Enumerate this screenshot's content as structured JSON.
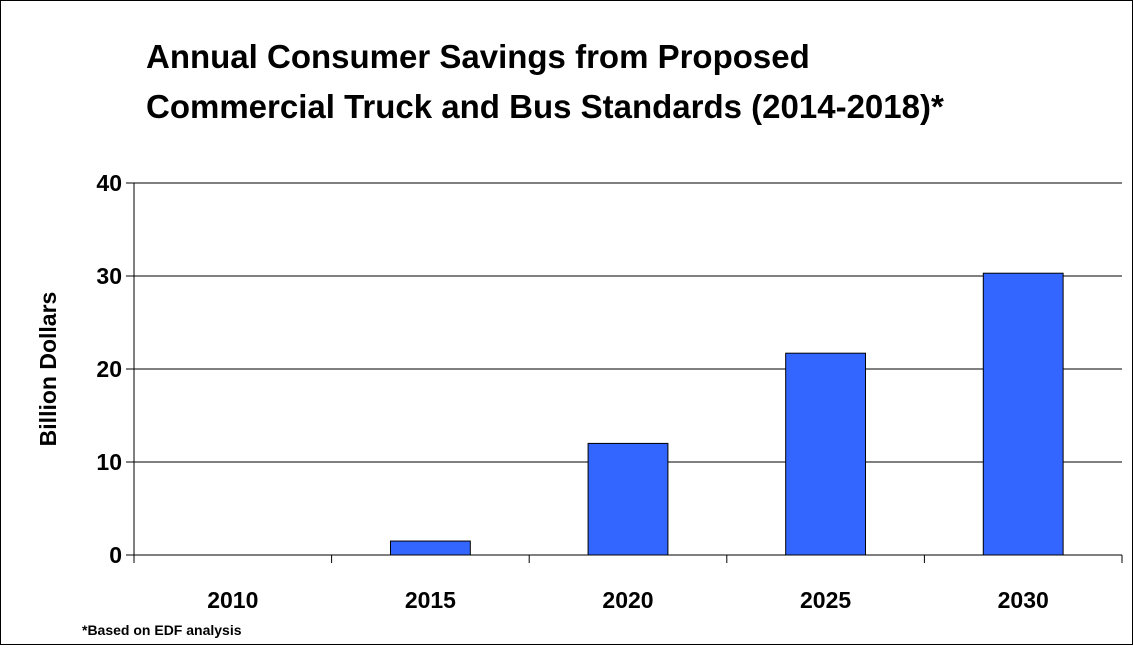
{
  "chart_data": {
    "type": "bar",
    "title_lines": [
      "Annual Consumer Savings from Proposed",
      "Commercial Truck and Bus Standards (2014-2018)*"
    ],
    "xlabel": "",
    "ylabel": "Billion Dollars",
    "categories": [
      "2010",
      "2015",
      "2020",
      "2025",
      "2030"
    ],
    "values": [
      0,
      1.5,
      12,
      21.7,
      30.3
    ],
    "ylim": [
      0,
      40
    ],
    "yticks": [
      "0",
      "10",
      "20",
      "30",
      "40"
    ],
    "grid": true,
    "legend": "none",
    "bar_color": "#3366FF",
    "bar_edge_color": "#000000",
    "footnote": "*Based on EDF analysis"
  }
}
